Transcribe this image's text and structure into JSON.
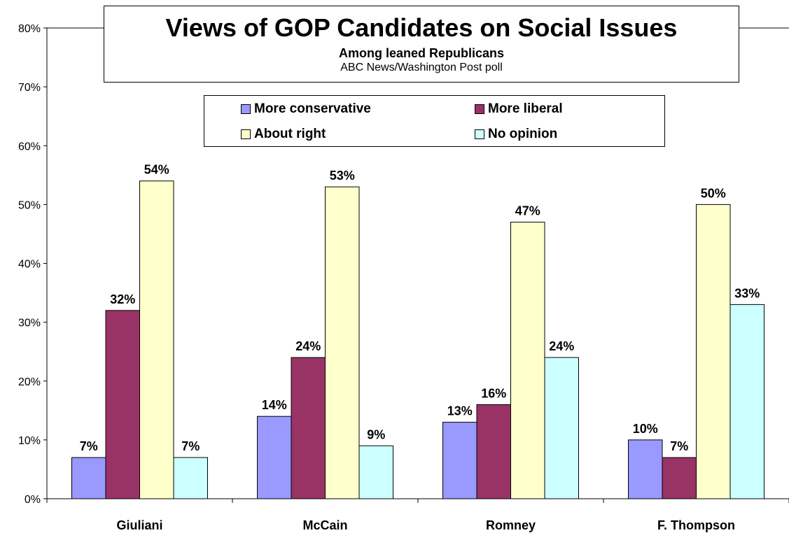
{
  "title": "Views of GOP Candidates on Social Issues",
  "subtitle": "Among leaned Republicans",
  "source": "ABC News/Washington Post poll",
  "chart_data": {
    "type": "bar",
    "categories": [
      "Giuliani",
      "McCain",
      "Romney",
      "F. Thompson"
    ],
    "series": [
      {
        "name": "More conservative",
        "color": "#9999ff",
        "values": [
          7,
          14,
          13,
          10
        ],
        "labels": [
          "7%",
          "14%",
          "13%",
          "10%"
        ]
      },
      {
        "name": "More liberal",
        "color": "#993366",
        "values": [
          32,
          24,
          16,
          7
        ],
        "labels": [
          "32%",
          "24%",
          "16%",
          "7%"
        ]
      },
      {
        "name": "About right",
        "color": "#ffffcc",
        "values": [
          54,
          53,
          47,
          50
        ],
        "labels": [
          "54%",
          "53%",
          "47%",
          "50%"
        ]
      },
      {
        "name": "No opinion",
        "color": "#ccffff",
        "values": [
          7,
          9,
          24,
          33
        ],
        "labels": [
          "7%",
          "9%",
          "24%",
          "33%"
        ]
      }
    ],
    "ylim": [
      0,
      80
    ],
    "yticks": [
      "0%",
      "10%",
      "20%",
      "30%",
      "40%",
      "50%",
      "60%",
      "70%",
      "80%"
    ],
    "grid": false,
    "legend_position": "top"
  }
}
